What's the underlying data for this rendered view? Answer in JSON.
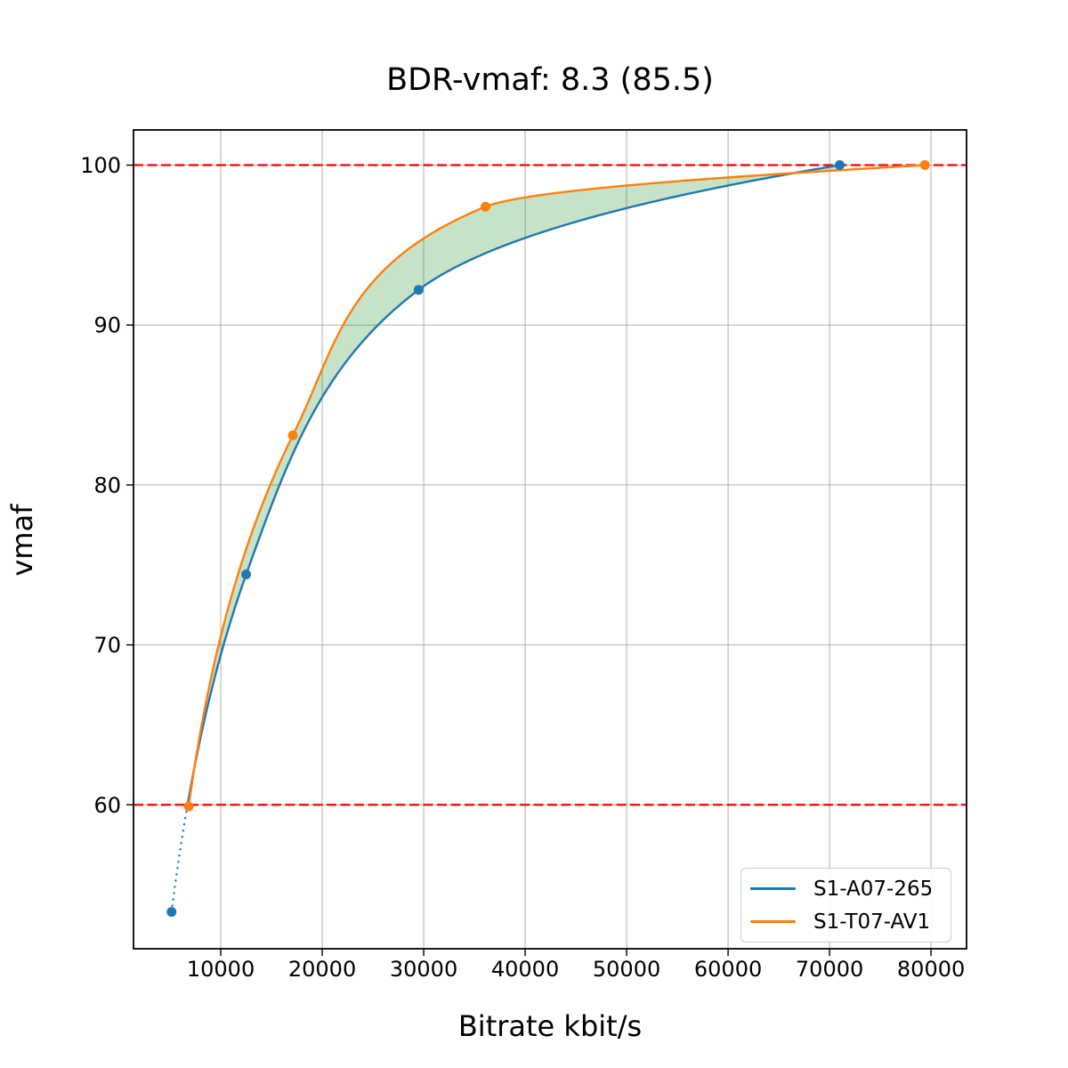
{
  "chart_data": {
    "type": "line",
    "title": "BDR-vmaf: 8.3 (85.5)",
    "xlabel": "Bitrate kbit/s",
    "ylabel": "vmaf",
    "xlim": [
      1400,
      83500
    ],
    "ylim": [
      51,
      102.2
    ],
    "xticks": [
      10000,
      20000,
      30000,
      40000,
      50000,
      60000,
      70000,
      80000
    ],
    "yticks": [
      60,
      70,
      80,
      90,
      100
    ],
    "grid": true,
    "grid_color": "#b0b0b0",
    "legend": {
      "position": "lower-right",
      "entries": [
        "S1-A07-265",
        "S1-T07-AV1"
      ]
    },
    "series": [
      {
        "name": "S1-A07-265",
        "color": "#1f77b4",
        "dotted_below_y": 60,
        "points": [
          [
            5150,
            53.3
          ],
          [
            12500,
            74.4
          ],
          [
            29500,
            92.2
          ],
          [
            71000,
            100.0
          ]
        ]
      },
      {
        "name": "S1-T07-AV1",
        "color": "#ff7f0e",
        "points": [
          [
            6840,
            59.9
          ],
          [
            17100,
            83.1
          ],
          [
            36100,
            97.4
          ],
          [
            79400,
            100.0
          ]
        ]
      }
    ],
    "reference_lines": {
      "color": "#ff0000",
      "style": "dashed",
      "y_values": [
        60,
        100
      ]
    },
    "fill_between": {
      "color": "#008000",
      "opacity": 0.22,
      "x_range": [
        6840,
        71000
      ]
    }
  }
}
